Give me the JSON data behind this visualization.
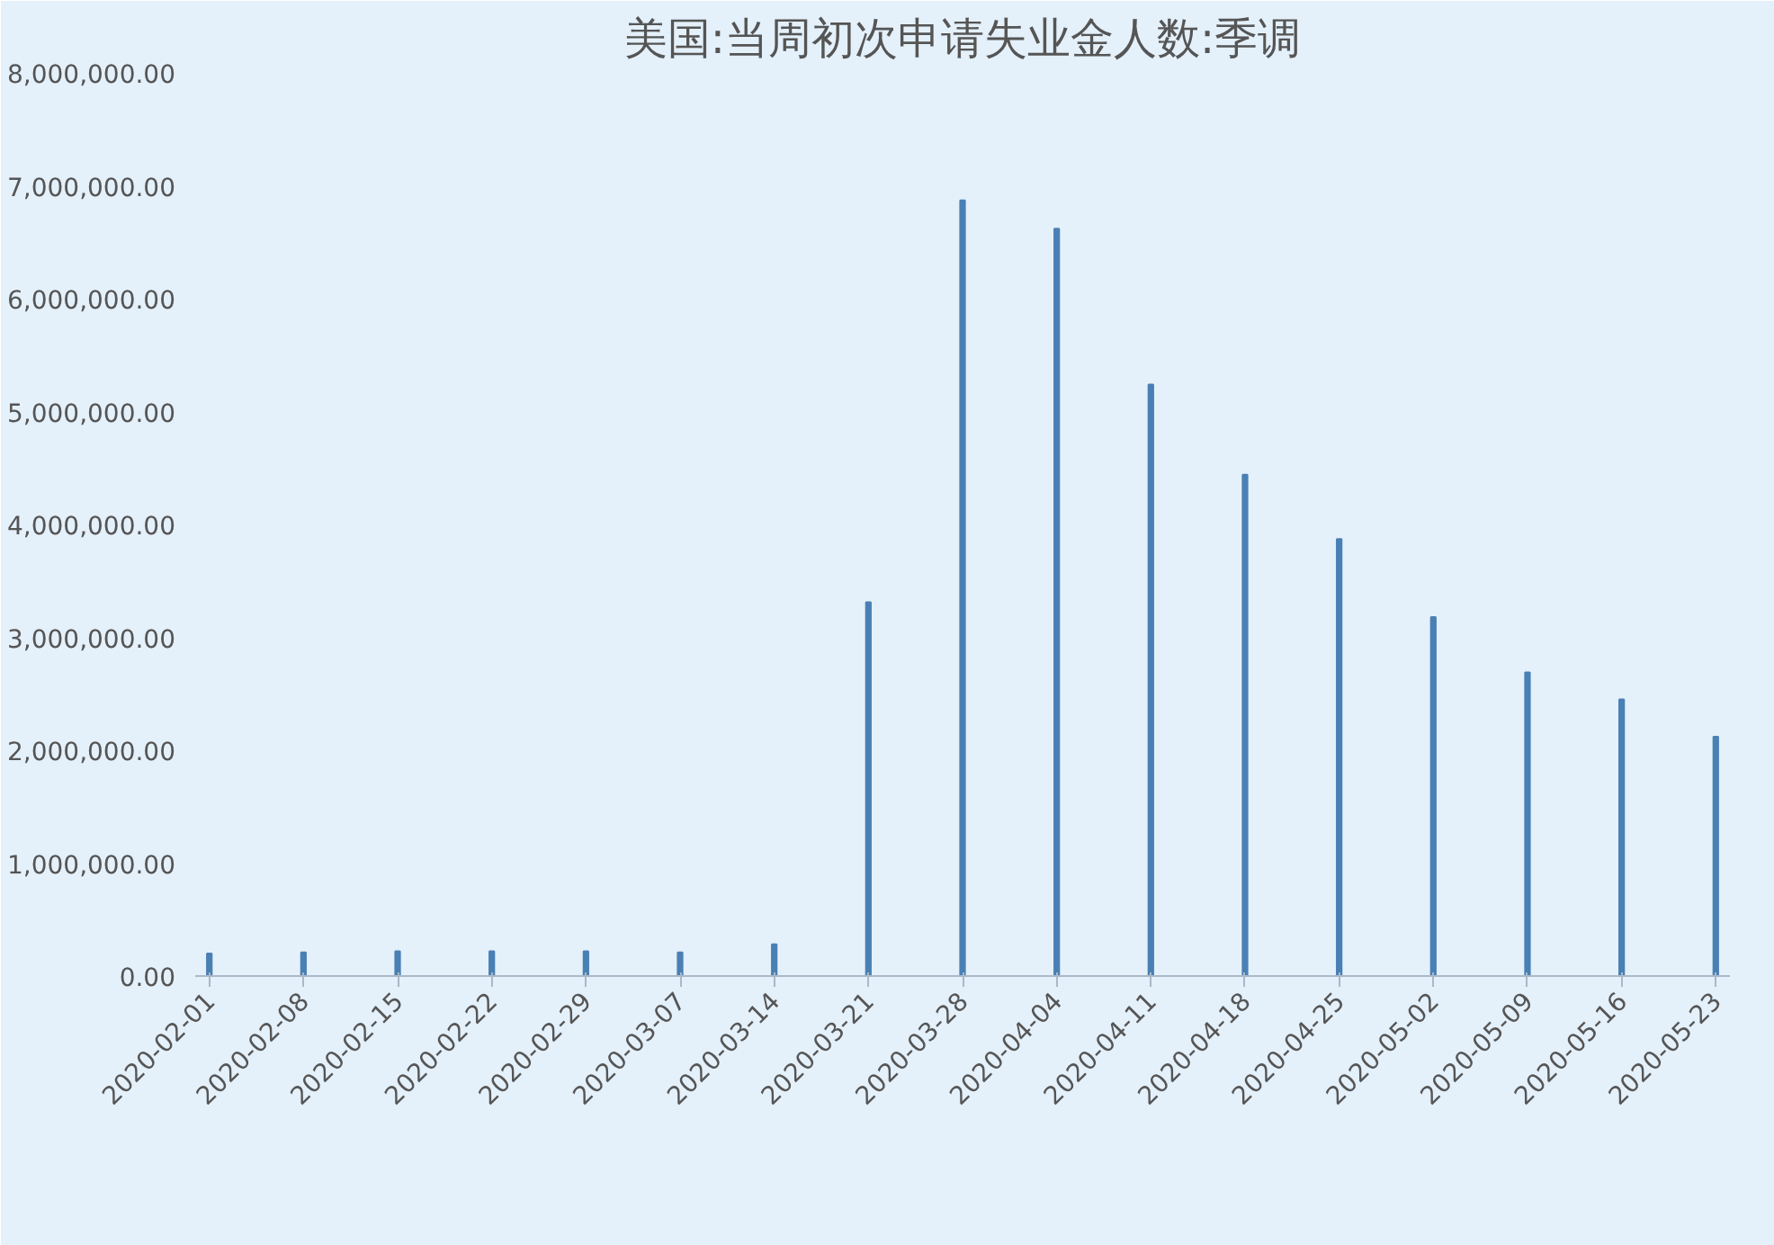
{
  "chart_data": {
    "type": "bar",
    "title": "美国:当周初次申请失业金人数:季调",
    "categories": [
      "2020-02-01",
      "2020-02-08",
      "2020-02-15",
      "2020-02-22",
      "2020-02-29",
      "2020-03-07",
      "2020-03-14",
      "2020-03-21",
      "2020-03-28",
      "2020-04-04",
      "2020-04-11",
      "2020-04-18",
      "2020-04-25",
      "2020-05-02",
      "2020-05-09",
      "2020-05-16",
      "2020-05-23"
    ],
    "values": [
      200000,
      210000,
      220000,
      220000,
      220000,
      210000,
      280000,
      3310000,
      6870000,
      6620000,
      5240000,
      4440000,
      3870000,
      3180000,
      2690000,
      2450000,
      2120000
    ],
    "color": "#4a80b4",
    "ylim": [
      0,
      8000000
    ],
    "yticks": [
      {
        "value": 0,
        "label": "0.00"
      },
      {
        "value": 1000000,
        "label": "1,000,000.00"
      },
      {
        "value": 2000000,
        "label": "2,000,000.00"
      },
      {
        "value": 3000000,
        "label": "3,000,000.00"
      },
      {
        "value": 4000000,
        "label": "4,000,000.00"
      },
      {
        "value": 5000000,
        "label": "5,000,000.00"
      },
      {
        "value": 6000000,
        "label": "6,000,000.00"
      },
      {
        "value": 7000000,
        "label": "7,000,000.00"
      },
      {
        "value": 8000000,
        "label": "8,000,000.00"
      }
    ],
    "grid": false
  }
}
